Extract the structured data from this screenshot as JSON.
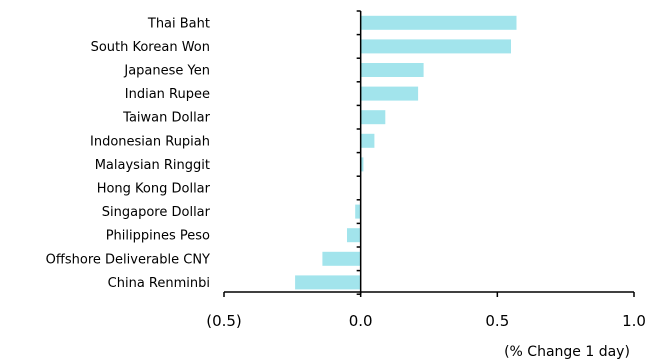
{
  "chart_data": {
    "type": "bar",
    "orientation": "horizontal",
    "categories": [
      "Thai Baht",
      "South Korean Won",
      "Japanese Yen",
      "Indian Rupee",
      "Taiwan Dollar",
      "Indonesian Rupiah",
      "Malaysian Ringgit",
      "Hong Kong Dollar",
      "Singapore Dollar",
      "Philippines Peso",
      "Offshore Deliverable CNY",
      "China Renminbi"
    ],
    "values": [
      0.57,
      0.55,
      0.23,
      0.21,
      0.09,
      0.05,
      0.01,
      0.0,
      -0.02,
      -0.05,
      -0.14,
      -0.24
    ],
    "xlabel": "(% Change 1 day)",
    "ylabel": "",
    "title": "",
    "xlim": [
      -0.5,
      1.0
    ],
    "xticks": [
      -0.5,
      0.0,
      0.5,
      1.0
    ],
    "xtick_labels": [
      "(0.5)",
      "0.0",
      "0.5",
      "1.0"
    ],
    "grid": false,
    "bar_color": "#a2e4ec"
  }
}
